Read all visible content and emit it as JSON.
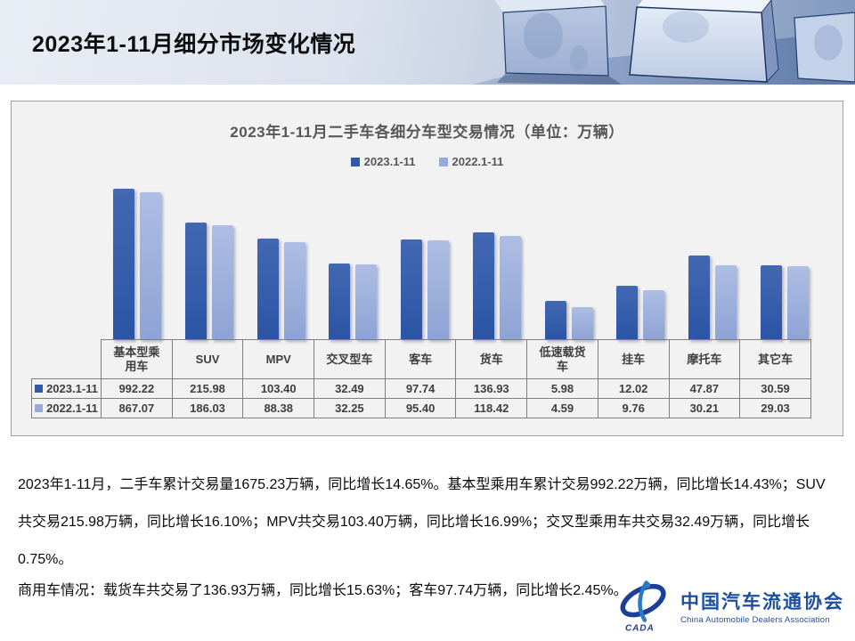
{
  "header": {
    "title": "2023年1-11月细分市场变化情况"
  },
  "chart_data": {
    "type": "bar",
    "title": "2023年1-11月二手车各细分车型交易情况（单位：万辆）",
    "unit": "万辆",
    "scale": "log",
    "legend_position": "top",
    "grid": false,
    "categories": [
      "基本型乘用车",
      "SUV",
      "MPV",
      "交叉型车",
      "客车",
      "货车",
      "低速载货车",
      "挂车",
      "摩托车",
      "其它车"
    ],
    "series": [
      {
        "name": "2023.1-11",
        "color": "#2E5AA8",
        "values": [
          992.22,
          215.98,
          103.4,
          32.49,
          97.74,
          136.93,
          5.98,
          12.02,
          47.87,
          30.59
        ],
        "display": [
          "992.22",
          "215.98",
          "103.40",
          "32.49",
          "97.74",
          "136.93",
          "5.98",
          "12.02",
          "47.87",
          "30.59"
        ]
      },
      {
        "name": "2022.1-11",
        "color": "#96ABD9",
        "values": [
          867.07,
          186.03,
          88.38,
          32.25,
          95.4,
          118.42,
          4.59,
          9.76,
          30.21,
          29.03
        ],
        "display": [
          "867.07",
          "186.03",
          "88.38",
          "32.25",
          "95.40",
          "118.42",
          "4.59",
          "9.76",
          "30.21",
          "29.03"
        ]
      }
    ]
  },
  "analysis": {
    "lines": [
      "2023年1-11月，二手车累计交易量1675.23万辆，同比增长14.65%。基本型乘用车累计交易992.22万辆，同比增长14.43%；SUV",
      "共交易215.98万辆，同比增长16.10%；MPV共交易103.40万辆，同比增长16.99%；交叉型乘用车共交易32.49万辆，同比增长",
      "0.75%。",
      "商用车情况：载货车共交易了136.93万辆，同比增长15.63%；客车97.74万辆，同比增长2.45%。"
    ]
  },
  "logo": {
    "cn": "中国汽车流通协会",
    "en": "China Automobile Dealers Association",
    "emblem_text": "CADA"
  }
}
